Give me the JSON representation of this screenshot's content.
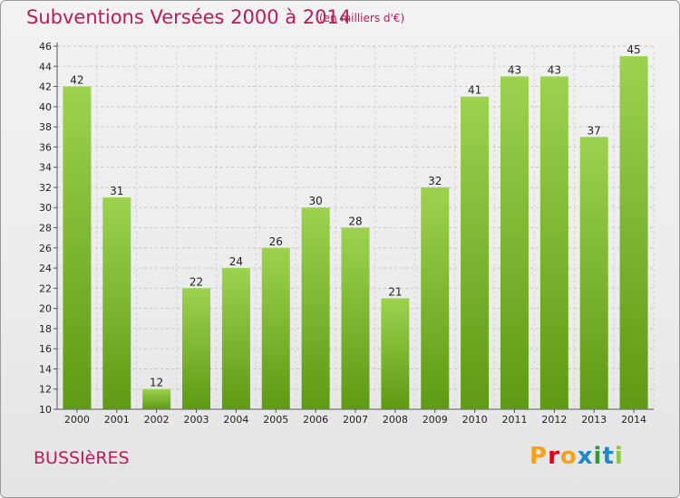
{
  "header": {
    "title": "Subventions Versées 2000 à 2014",
    "subtitle": "(en milliers d'€)"
  },
  "footer": {
    "commune": "BUSSIèRES",
    "logo_letters": [
      "P",
      "r",
      "o",
      "x",
      "i",
      "t",
      "i"
    ],
    "logo_colors": [
      "#f4a21c",
      "#e2001a",
      "#f4a21c",
      "#1e88c8",
      "#2e9a3c",
      "#1e88c8",
      "#8dc63f"
    ]
  },
  "chart_data": {
    "type": "bar",
    "categories": [
      "2000",
      "2001",
      "2002",
      "2003",
      "2004",
      "2005",
      "2006",
      "2007",
      "2008",
      "2009",
      "2010",
      "2011",
      "2012",
      "2013",
      "2014"
    ],
    "values": [
      42,
      31,
      12,
      22,
      24,
      26,
      30,
      28,
      21,
      32,
      41,
      43,
      43,
      37,
      45
    ],
    "ylim": [
      10,
      46
    ],
    "yticks": [
      10,
      12,
      14,
      16,
      18,
      20,
      22,
      24,
      26,
      28,
      30,
      32,
      34,
      36,
      38,
      40,
      42,
      44,
      46
    ],
    "grid": true,
    "bar_color_top": "#9dd24e",
    "bar_color_bottom": "#5e9a13"
  }
}
